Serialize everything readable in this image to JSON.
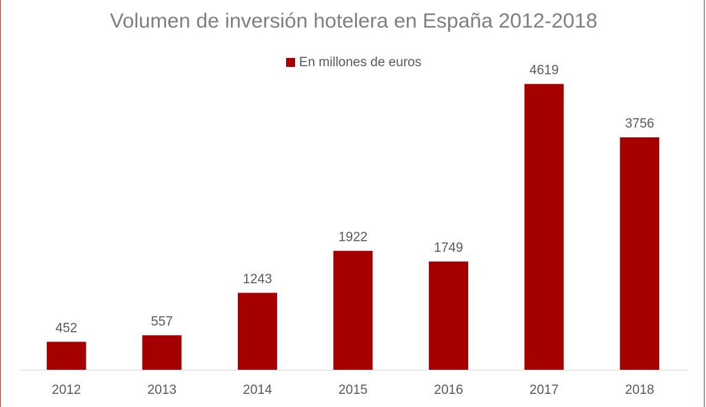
{
  "chart_data": {
    "type": "bar",
    "title": "Volumen de inversión hotelera en España 2012-2018",
    "legend_position": "top",
    "grid": false,
    "categories": [
      "2012",
      "2013",
      "2014",
      "2015",
      "2016",
      "2017",
      "2018"
    ],
    "series": [
      {
        "name": "En millones de euros",
        "values": [
          452,
          557,
          1243,
          1922,
          1749,
          4619,
          3756
        ],
        "color": "#a50000"
      }
    ],
    "ylim": [
      0,
      5000
    ]
  }
}
